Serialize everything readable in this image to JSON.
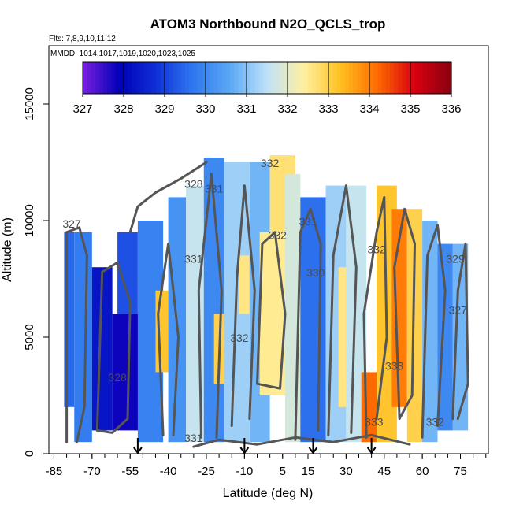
{
  "chart_data": {
    "type": "heatmap",
    "title": "ATOM3 Northbound N2O_QCLS_trop",
    "subtitle_flights": "Flts: 7,8,9,10,11,12",
    "subtitle_dates": "MMDD: 1014,1017,1019,1020,1023,1025",
    "xlabel": "Latitude (deg N)",
    "ylabel": "Altitude (m)",
    "xlim": [
      -87,
      86
    ],
    "ylim": [
      0,
      17500
    ],
    "x_ticks": [
      "-85",
      "-70",
      "-55",
      "-40",
      "-25",
      "-10",
      "5",
      "15",
      "30",
      "45",
      "60",
      "75"
    ],
    "x_tick_values": [
      -85,
      -70,
      -55,
      -40,
      -25,
      -10,
      5,
      15,
      30,
      45,
      60,
      75
    ],
    "y_ticks": [
      "0",
      "5000",
      "10000",
      "15000"
    ],
    "y_tick_values": [
      0,
      5000,
      10000,
      15000
    ],
    "colorbar": {
      "min": 327,
      "max": 336,
      "labels": [
        "327",
        "328",
        "329",
        "330",
        "331",
        "332",
        "333",
        "334",
        "335",
        "336"
      ],
      "colors": [
        "#7a1fe0",
        "#0000b8",
        "#1030d8",
        "#2f78f0",
        "#5ba8f5",
        "#bfe2f8",
        "#fff0a0",
        "#ffc020",
        "#ff6a00",
        "#d80010",
        "#8b0010"
      ]
    },
    "arrows_latitude": [
      -52,
      -10,
      17,
      40
    ],
    "contour_labels": [
      {
        "text": "327",
        "lat": -78,
        "alt": 9700
      },
      {
        "text": "328",
        "lat": -30,
        "alt": 11400
      },
      {
        "text": "331",
        "lat": -22,
        "alt": 11200
      },
      {
        "text": "332",
        "lat": 0,
        "alt": 12300
      },
      {
        "text": "332",
        "lat": 3,
        "alt": 9200
      },
      {
        "text": "331",
        "lat": -30,
        "alt": 8200
      },
      {
        "text": "331",
        "lat": 15,
        "alt": 9800
      },
      {
        "text": "330",
        "lat": 18,
        "alt": 7600
      },
      {
        "text": "332",
        "lat": 42,
        "alt": 8600
      },
      {
        "text": "329",
        "lat": 73,
        "alt": 8200
      },
      {
        "text": "327",
        "lat": 74,
        "alt": 6000
      },
      {
        "text": "332",
        "lat": -12,
        "alt": 4800
      },
      {
        "text": "333",
        "lat": 49,
        "alt": 3600
      },
      {
        "text": "333",
        "lat": 41,
        "alt": 1200
      },
      {
        "text": "332",
        "lat": 65,
        "alt": 1200
      },
      {
        "text": "328",
        "lat": -60,
        "alt": 3100
      },
      {
        "text": "331",
        "lat": -30,
        "alt": 500
      }
    ],
    "regions": [
      {
        "lat": [
          -81,
          -77
        ],
        "alt": [
          2000,
          9500
        ],
        "value": 329.5
      },
      {
        "lat": [
          -77,
          -70
        ],
        "alt": [
          500,
          9500
        ],
        "value": 329.8
      },
      {
        "lat": [
          -70,
          -62
        ],
        "alt": [
          1000,
          8000
        ],
        "value": 328.3
      },
      {
        "lat": [
          -62,
          -50
        ],
        "alt": [
          1000,
          6000
        ],
        "value": 327.8
      },
      {
        "lat": [
          -60,
          -52
        ],
        "alt": [
          6000,
          9500
        ],
        "value": 329.2
      },
      {
        "lat": [
          -52,
          -42
        ],
        "alt": [
          500,
          10000
        ],
        "value": 329.9
      },
      {
        "lat": [
          -45,
          -40
        ],
        "alt": [
          3500,
          7000
        ],
        "value": 333.2
      },
      {
        "lat": [
          -40,
          -33
        ],
        "alt": [
          500,
          11000
        ],
        "value": 330.2
      },
      {
        "lat": [
          -33,
          -26
        ],
        "alt": [
          500,
          11500
        ],
        "value": 331.6
      },
      {
        "lat": [
          -26,
          -18
        ],
        "alt": [
          500,
          12700
        ],
        "value": 330.0
      },
      {
        "lat": [
          -22,
          -17
        ],
        "alt": [
          3000,
          6000
        ],
        "value": 333.0
      },
      {
        "lat": [
          -18,
          -8
        ],
        "alt": [
          500,
          12500
        ],
        "value": 331.2
      },
      {
        "lat": [
          -12,
          -6
        ],
        "alt": [
          6000,
          8500
        ],
        "value": 332.6
      },
      {
        "lat": [
          -8,
          0
        ],
        "alt": [
          500,
          12500
        ],
        "value": 330.8
      },
      {
        "lat": [
          -4,
          6
        ],
        "alt": [
          2500,
          9500
        ],
        "value": 332.5
      },
      {
        "lat": [
          0,
          10
        ],
        "alt": [
          9500,
          12800
        ],
        "value": 332.7
      },
      {
        "lat": [
          6,
          12
        ],
        "alt": [
          500,
          12000
        ],
        "value": 331.8
      },
      {
        "lat": [
          12,
          22
        ],
        "alt": [
          500,
          11000
        ],
        "value": 329.6
      },
      {
        "lat": [
          22,
          30
        ],
        "alt": [
          500,
          11500
        ],
        "value": 331.2
      },
      {
        "lat": [
          27,
          33
        ],
        "alt": [
          2000,
          8000
        ],
        "value": 332.6
      },
      {
        "lat": [
          30,
          38
        ],
        "alt": [
          500,
          11500
        ],
        "value": 331.6
      },
      {
        "lat": [
          36,
          42
        ],
        "alt": [
          500,
          3500
        ],
        "value": 334.2
      },
      {
        "lat": [
          42,
          50
        ],
        "alt": [
          500,
          11500
        ],
        "value": 333.2
      },
      {
        "lat": [
          48,
          54
        ],
        "alt": [
          2000,
          10500
        ],
        "value": 334.0
      },
      {
        "lat": [
          54,
          60
        ],
        "alt": [
          500,
          10500
        ],
        "value": 333.0
      },
      {
        "lat": [
          60,
          66
        ],
        "alt": [
          500,
          10000
        ],
        "value": 330.8
      },
      {
        "lat": [
          66,
          72
        ],
        "alt": [
          1000,
          9000
        ],
        "value": 330.0
      },
      {
        "lat": [
          72,
          78
        ],
        "alt": [
          1000,
          9000
        ],
        "value": 330.8
      }
    ]
  }
}
